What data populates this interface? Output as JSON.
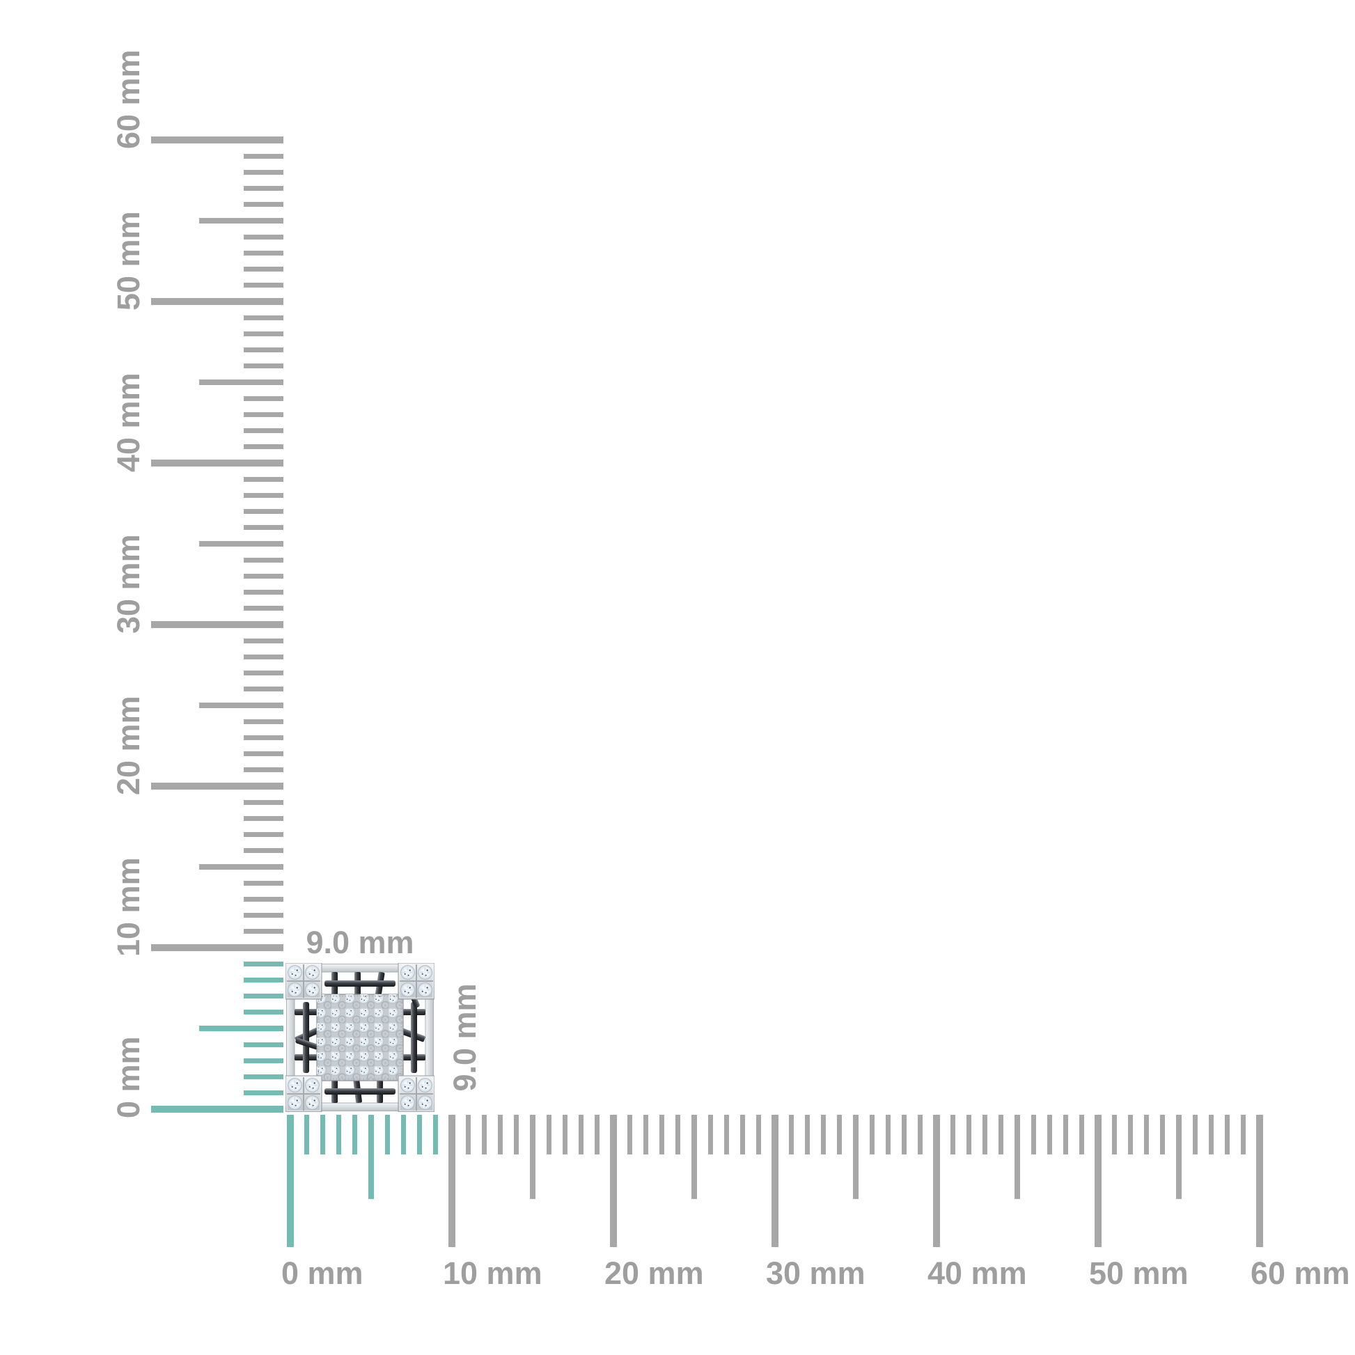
{
  "diagram": {
    "type": "product-size-measurement",
    "unit": "mm"
  },
  "item": {
    "kind": "square-diamond-cluster-jewel",
    "width_label": "9.0 mm",
    "height_label": "9.0 mm",
    "width_mm": 9.0,
    "height_mm": 9.0
  },
  "horizontal_ruler": {
    "min_mm": 0,
    "max_mm": 60,
    "major_step_mm": 10,
    "medium_step_mm": 5,
    "minor_step_mm": 1,
    "highlight_start_mm": 0,
    "highlight_end_mm": 9,
    "major_labels": [
      "0 mm",
      "10 mm",
      "20 mm",
      "30 mm",
      "40 mm",
      "50 mm",
      "60 mm"
    ]
  },
  "vertical_ruler": {
    "min_mm": 0,
    "max_mm": 60,
    "major_step_mm": 10,
    "medium_step_mm": 5,
    "minor_step_mm": 1,
    "highlight_start_mm": 0,
    "highlight_end_mm": 9,
    "major_labels": [
      "0 mm",
      "10 mm",
      "20 mm",
      "30 mm",
      "40 mm",
      "50 mm",
      "60 mm"
    ]
  },
  "colors": {
    "highlight_teal": "#74bbb3",
    "tick_gray": "#a7a7a7",
    "label_gray": "#9e9e9e",
    "metal_light": "#dde1e4",
    "metal_dark": "#2b2f34",
    "diamond_white": "#f2f6f9"
  }
}
